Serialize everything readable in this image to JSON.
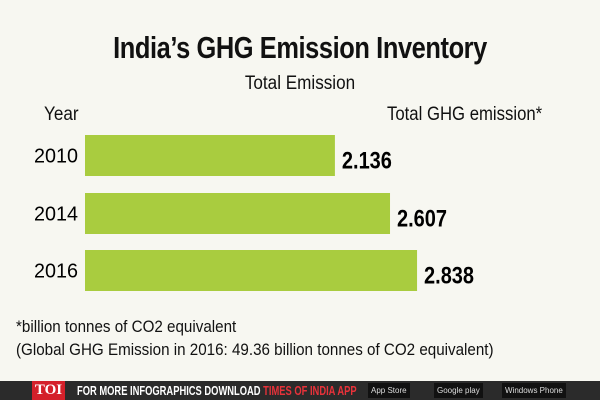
{
  "chart_data": {
    "type": "bar",
    "orientation": "horizontal",
    "title": "India’s GHG Emission Inventory",
    "subtitle": "Total Emission",
    "ylabel": "Year",
    "xlabel": "Total GHG emission*",
    "categories": [
      "2010",
      "2014",
      "2016"
    ],
    "values": [
      2.136,
      2.607,
      2.838
    ],
    "value_labels": [
      "2.136",
      "2.607",
      "2.838"
    ],
    "bar_color": "#a9cc3f",
    "grid": false
  },
  "footnotes": [
    "*billion tonnes of CO2 equivalent",
    "(Global GHG Emission in 2016: 49.36 billion tonnes of CO2 equivalent)"
  ],
  "banner": {
    "logo": "TOI",
    "text": "FOR MORE  INFOGRAPHICS DOWNLOAD ",
    "highlight": "TIMES OF INDIA  APP",
    "stores": [
      "App Store",
      "Google play",
      "Windows Phone"
    ]
  }
}
